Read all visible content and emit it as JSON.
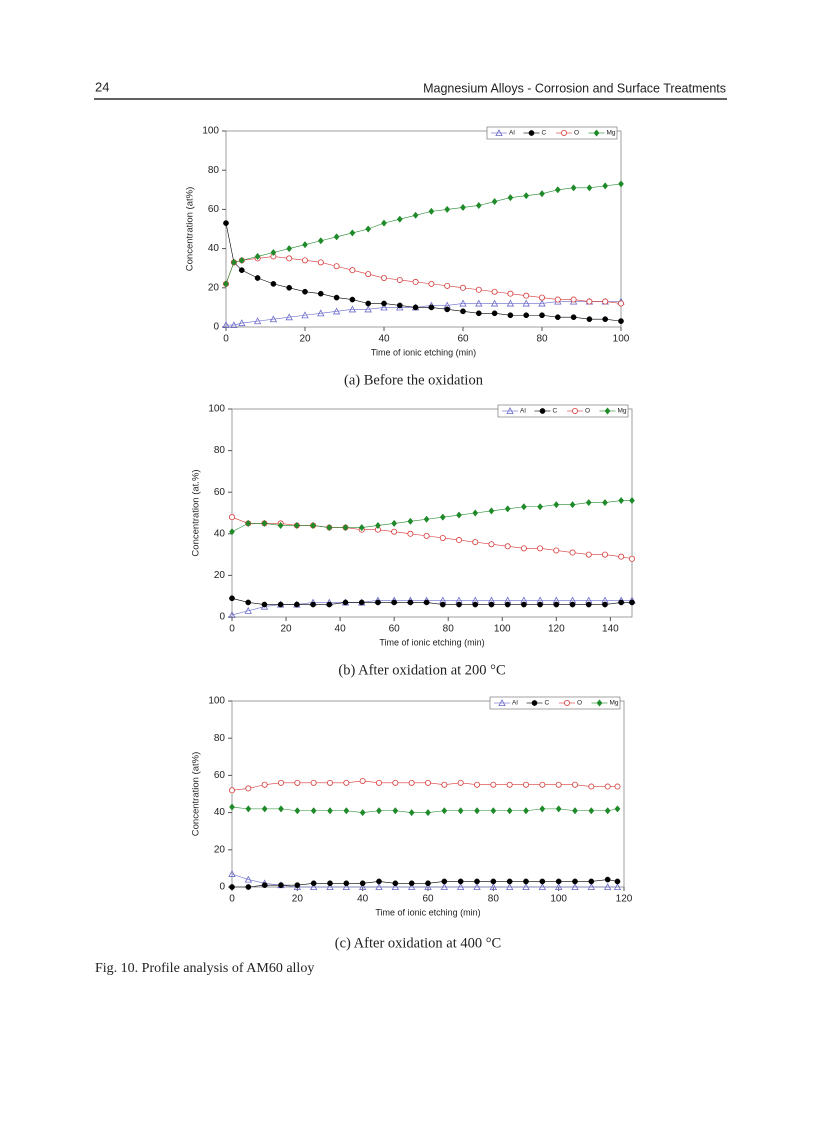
{
  "header": {
    "page_number": "24",
    "title": "Magnesium Alloys - Corrosion and Surface Treatments"
  },
  "chart_data": [
    {
      "type": "line",
      "caption": "(a) Before the oxidation",
      "x_label": "Time of ionic etching (min)",
      "y_label": "Concentration (at%)",
      "xlim": [
        0,
        100
      ],
      "ylim": [
        0,
        100
      ],
      "xticks": [
        0,
        20,
        40,
        60,
        80,
        100
      ],
      "yticks": [
        0,
        20,
        40,
        60,
        80,
        100
      ],
      "legend": "upper right",
      "x": [
        0,
        2,
        4,
        8,
        12,
        16,
        20,
        24,
        28,
        32,
        36,
        40,
        44,
        48,
        52,
        56,
        60,
        64,
        68,
        72,
        76,
        80,
        84,
        88,
        92,
        96,
        100
      ],
      "series": [
        {
          "name": "Al",
          "color": "#6a6acc",
          "marker": "triangle-open",
          "values": [
            1,
            1,
            2,
            3,
            4,
            5,
            6,
            7,
            8,
            9,
            9,
            10,
            10,
            10,
            11,
            11,
            12,
            12,
            12,
            12,
            12,
            12,
            13,
            13,
            13,
            13,
            13
          ]
        },
        {
          "name": "C",
          "color": "#000000",
          "marker": "circle-filled",
          "values": [
            53,
            33,
            29,
            25,
            22,
            20,
            18,
            17,
            15,
            14,
            12,
            12,
            11,
            10,
            10,
            9,
            8,
            7,
            7,
            6,
            6,
            6,
            5,
            5,
            4,
            4,
            3
          ]
        },
        {
          "name": "O",
          "color": "#d83a3a",
          "marker": "circle-open",
          "values": [
            22,
            33,
            34,
            35,
            36,
            35,
            34,
            33,
            31,
            29,
            27,
            25,
            24,
            23,
            22,
            21,
            20,
            19,
            18,
            17,
            16,
            15,
            14,
            14,
            13,
            13,
            12
          ]
        },
        {
          "name": "Mg",
          "color": "#1f8a2a",
          "marker": "diamond-filled",
          "values": [
            22,
            33,
            34,
            36,
            38,
            40,
            42,
            44,
            46,
            48,
            50,
            53,
            55,
            57,
            59,
            60,
            61,
            62,
            64,
            66,
            67,
            68,
            70,
            71,
            71,
            72,
            73
          ]
        }
      ]
    },
    {
      "type": "line",
      "caption": "(b) After oxidation at 200 °C",
      "x_label": "Time of ionic etching (min)",
      "y_label": "Concentration (at.%)",
      "xlim": [
        0,
        148
      ],
      "ylim": [
        0,
        100
      ],
      "xticks": [
        0,
        20,
        40,
        60,
        80,
        100,
        120,
        140
      ],
      "yticks": [
        0,
        20,
        40,
        60,
        80,
        100
      ],
      "legend": "upper right",
      "x": [
        0,
        6,
        12,
        18,
        24,
        30,
        36,
        42,
        48,
        54,
        60,
        66,
        72,
        78,
        84,
        90,
        96,
        102,
        108,
        114,
        120,
        126,
        132,
        138,
        144,
        148
      ],
      "series": [
        {
          "name": "Al",
          "color": "#6a6acc",
          "marker": "triangle-open",
          "values": [
            1,
            3,
            5,
            6,
            6,
            7,
            7,
            7,
            7,
            8,
            8,
            8,
            8,
            8,
            8,
            8,
            8,
            8,
            8,
            8,
            8,
            8,
            8,
            8,
            8,
            8
          ]
        },
        {
          "name": "C",
          "color": "#000000",
          "marker": "circle-filled",
          "values": [
            9,
            7,
            6,
            6,
            6,
            6,
            6,
            7,
            7,
            7,
            7,
            7,
            7,
            6,
            6,
            6,
            6,
            6,
            6,
            6,
            6,
            6,
            6,
            6,
            7,
            7
          ]
        },
        {
          "name": "O",
          "color": "#d83a3a",
          "marker": "circle-open",
          "values": [
            48,
            45,
            45,
            45,
            44,
            44,
            43,
            43,
            42,
            42,
            41,
            40,
            39,
            38,
            37,
            36,
            35,
            34,
            33,
            33,
            32,
            31,
            30,
            30,
            29,
            28
          ]
        },
        {
          "name": "Mg",
          "color": "#1f8a2a",
          "marker": "diamond-filled",
          "values": [
            41,
            45,
            45,
            44,
            44,
            44,
            43,
            43,
            43,
            44,
            45,
            46,
            47,
            48,
            49,
            50,
            51,
            52,
            53,
            53,
            54,
            54,
            55,
            55,
            56,
            56
          ]
        }
      ]
    },
    {
      "type": "line",
      "caption": "(c) After oxidation at 400 °C",
      "x_label": "Time of ionic etching (min)",
      "y_label": "Concentration (at%)",
      "xlim": [
        0,
        120
      ],
      "ylim": [
        0,
        100
      ],
      "xticks": [
        0,
        20,
        40,
        60,
        80,
        100,
        120
      ],
      "yticks": [
        0,
        20,
        40,
        60,
        80,
        100
      ],
      "legend": "upper right",
      "x": [
        0,
        5,
        10,
        15,
        20,
        25,
        30,
        35,
        40,
        45,
        50,
        55,
        60,
        65,
        70,
        75,
        80,
        85,
        90,
        95,
        100,
        105,
        110,
        115,
        118
      ],
      "series": [
        {
          "name": "Al",
          "color": "#6a6acc",
          "marker": "triangle-open",
          "values": [
            7,
            4,
            2,
            1,
            0,
            0,
            0,
            0,
            0,
            0,
            0,
            0,
            0,
            0,
            0,
            0,
            0,
            0,
            0,
            0,
            0,
            0,
            0,
            0,
            0
          ]
        },
        {
          "name": "C",
          "color": "#000000",
          "marker": "circle-filled",
          "values": [
            0,
            0,
            1,
            1,
            1,
            2,
            2,
            2,
            2,
            3,
            2,
            2,
            2,
            3,
            3,
            3,
            3,
            3,
            3,
            3,
            3,
            3,
            3,
            4,
            3
          ]
        },
        {
          "name": "O",
          "color": "#d83a3a",
          "marker": "circle-open",
          "values": [
            52,
            53,
            55,
            56,
            56,
            56,
            56,
            56,
            57,
            56,
            56,
            56,
            56,
            55,
            56,
            55,
            55,
            55,
            55,
            55,
            55,
            55,
            54,
            54,
            54
          ]
        },
        {
          "name": "Mg",
          "color": "#1f8a2a",
          "marker": "diamond-filled",
          "values": [
            43,
            42,
            42,
            42,
            41,
            41,
            41,
            41,
            40,
            41,
            41,
            40,
            40,
            41,
            41,
            41,
            41,
            41,
            41,
            42,
            42,
            41,
            41,
            41,
            42
          ]
        }
      ]
    }
  ],
  "figure_caption": "Fig. 10. Profile analysis of AM60 alloy"
}
